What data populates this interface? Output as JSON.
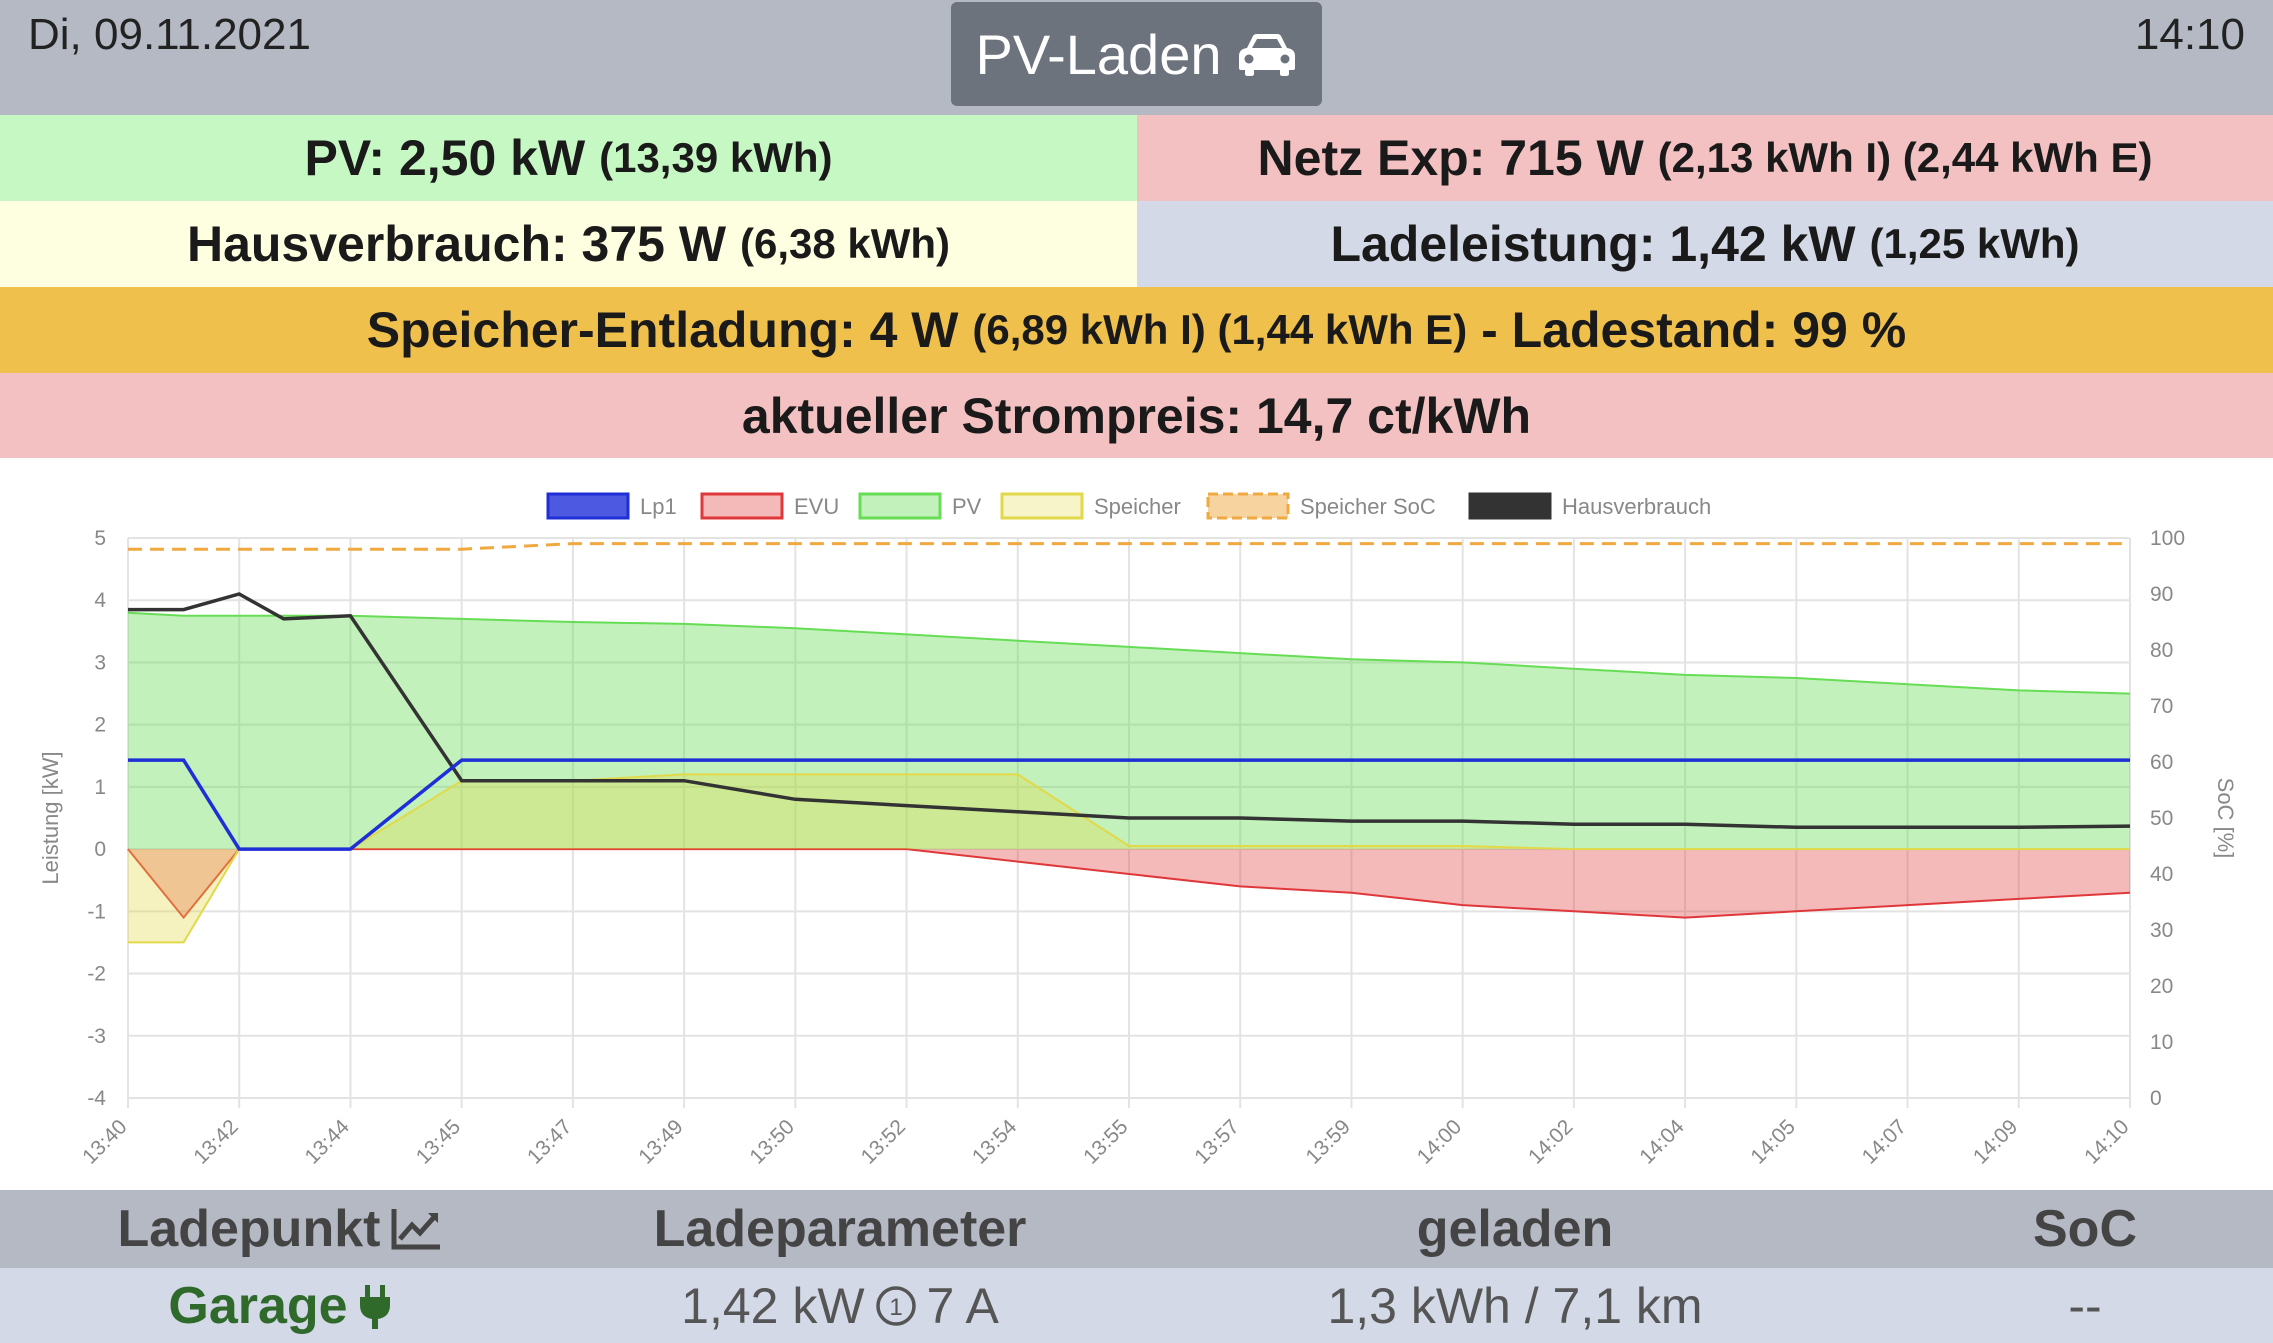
{
  "header": {
    "date": "Di, 09.11.2021",
    "time": "14:10",
    "mode_label": "PV-Laden",
    "mode_icon": "car-icon"
  },
  "stats": {
    "pv_main": "PV: 2,50 kW",
    "pv_sub": "(13,39 kWh)",
    "grid_main": "Netz Exp: 715 W",
    "grid_sub": "(2,13 kWh I) (2,44 kWh E)",
    "house_main": "Hausverbrauch: 375 W",
    "house_sub": "(6,38 kWh)",
    "charge_main": "Ladeleistung: 1,42 kW",
    "charge_sub": "(1,25 kWh)",
    "storage_main": "Speicher-Entladung: 4 W",
    "storage_sub": "(6,89 kWh I) (1,44 kWh E)",
    "storage_soc": "- Ladestand: 99 %",
    "price": "aktueller Strompreis: 14,7 ct/kWh"
  },
  "colors": {
    "pv_bg": "#c6f8c3",
    "grid_bg": "#f3c1c1",
    "house_bg": "#fefee0",
    "charge_bg": "#d3d9e6",
    "storage_bg": "#f0c04c",
    "price_bg": "#f3c1c1",
    "lp1": "#1f2fd8",
    "evu": "#e0383a",
    "pv": "#66dd55",
    "speicher": "#e2d94a",
    "soc": "#f0a840",
    "haus": "#333333"
  },
  "chart_data": {
    "type": "line",
    "legend": [
      "Lp1",
      "EVU",
      "PV",
      "Speicher",
      "Speicher SoC",
      "Hausverbrauch"
    ],
    "legend_position": "top",
    "ylabel": "Leistung [kW]",
    "y2label": "SoC [%]",
    "ylim": [
      -4,
      5
    ],
    "y2lim": [
      0,
      100
    ],
    "yticks": [
      "5",
      "4",
      "3",
      "2",
      "1",
      "0",
      "-1",
      "-2",
      "-3",
      "-4"
    ],
    "y2ticks": [
      "100",
      "90",
      "80",
      "70",
      "60",
      "50",
      "40",
      "30",
      "20",
      "10",
      "0"
    ],
    "xticks": [
      "13:40",
      "13:42",
      "13:44",
      "13:45",
      "13:47",
      "13:49",
      "13:50",
      "13:52",
      "13:54",
      "13:55",
      "13:57",
      "13:59",
      "14:00",
      "14:02",
      "14:04",
      "14:05",
      "14:07",
      "14:09",
      "14:10"
    ],
    "grid": true,
    "x": [
      0,
      0.5,
      1,
      1.4,
      2,
      3,
      4,
      5,
      6,
      7,
      8,
      9,
      10,
      11,
      12,
      13,
      14,
      15,
      16,
      17,
      18
    ],
    "series": [
      {
        "name": "Lp1",
        "values": [
          1.43,
          1.43,
          0.0,
          0.0,
          0.0,
          1.43,
          1.43,
          1.43,
          1.43,
          1.43,
          1.43,
          1.43,
          1.43,
          1.43,
          1.43,
          1.43,
          1.43,
          1.43,
          1.43,
          1.43,
          1.43
        ]
      },
      {
        "name": "EVU",
        "values": [
          0.0,
          -1.1,
          0.0,
          0.0,
          0.0,
          0.0,
          0.0,
          0.0,
          0.0,
          0.0,
          -0.2,
          -0.4,
          -0.6,
          -0.7,
          -0.9,
          -1.0,
          -1.1,
          -1.0,
          -0.9,
          -0.8,
          -0.7
        ]
      },
      {
        "name": "PV",
        "values": [
          3.8,
          3.75,
          3.75,
          3.75,
          3.75,
          3.7,
          3.65,
          3.62,
          3.55,
          3.45,
          3.35,
          3.25,
          3.15,
          3.05,
          3.0,
          2.9,
          2.8,
          2.75,
          2.65,
          2.55,
          2.5
        ]
      },
      {
        "name": "Speicher",
        "values": [
          -1.5,
          -1.5,
          0.0,
          0.0,
          0.0,
          1.1,
          1.1,
          1.2,
          1.2,
          1.2,
          1.2,
          0.05,
          0.05,
          0.05,
          0.05,
          0.0,
          0.0,
          0.0,
          0.0,
          0.0,
          0.0
        ]
      },
      {
        "name": "Speicher SoC",
        "values": [
          98,
          98,
          98,
          98,
          98,
          98,
          99,
          99,
          99,
          99,
          99,
          99,
          99,
          99,
          99,
          99,
          99,
          99,
          99,
          99,
          99
        ]
      },
      {
        "name": "Hausverbrauch",
        "values": [
          3.85,
          3.85,
          4.1,
          3.7,
          3.75,
          1.1,
          1.1,
          1.1,
          0.8,
          0.7,
          0.6,
          0.5,
          0.5,
          0.45,
          0.45,
          0.4,
          0.4,
          0.35,
          0.35,
          0.35,
          0.37
        ]
      }
    ]
  },
  "ladepunkt": {
    "headers": {
      "ladepunkt": "Ladepunkt",
      "ladeparameter": "Ladeparameter",
      "geladen": "geladen",
      "soc": "SoC"
    },
    "row": {
      "name": "Garage",
      "power": "1,42 kW",
      "phases": "1",
      "current": "7 A",
      "charged": "1,3 kWh / 7,1 km",
      "soc": "--"
    }
  }
}
